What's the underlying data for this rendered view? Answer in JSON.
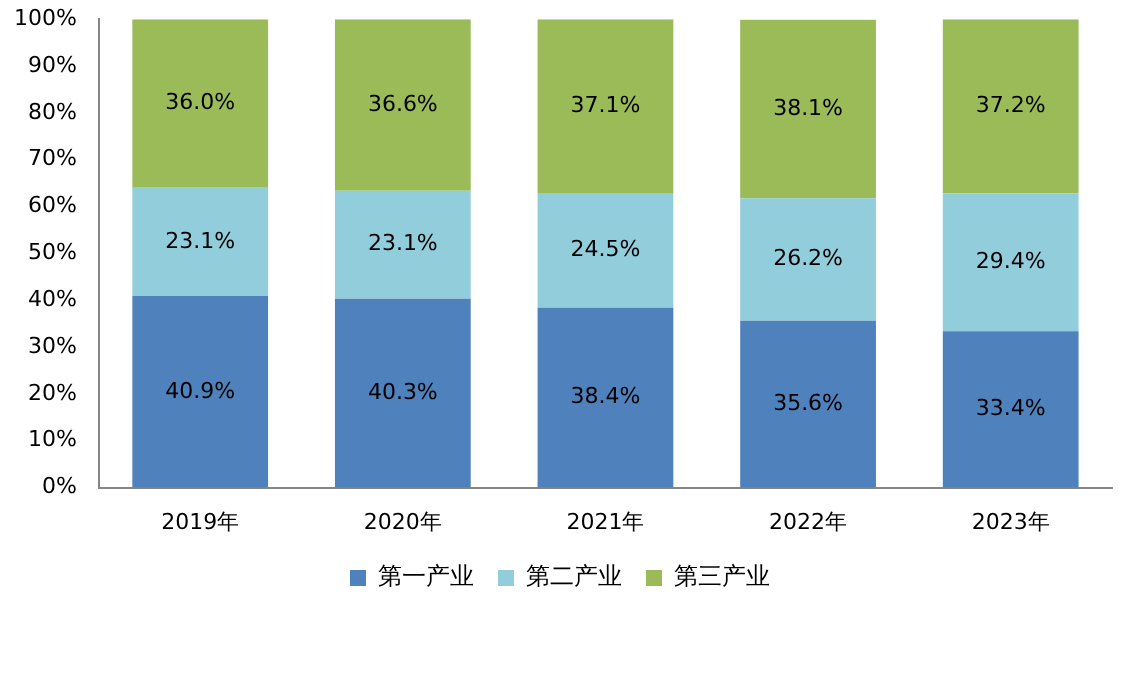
{
  "chart_data": {
    "type": "bar",
    "stacked": true,
    "categories": [
      "2019年",
      "2020年",
      "2021年",
      "2022年",
      "2023年"
    ],
    "series": [
      {
        "name": "第一产业",
        "color": "#4f81bd",
        "values": [
          40.9,
          40.3,
          38.4,
          35.6,
          33.4
        ],
        "value_labels": [
          "40.9%",
          "40.3%",
          "38.4%",
          "35.6%",
          "33.4%"
        ]
      },
      {
        "name": "第二产业",
        "color": "#92cddc",
        "values": [
          23.1,
          23.1,
          24.5,
          26.2,
          29.4
        ],
        "value_labels": [
          "23.1%",
          "23.1%",
          "24.5%",
          "26.2%",
          "29.4%"
        ]
      },
      {
        "name": "第三产业",
        "color": "#9bbb59",
        "values": [
          36.0,
          36.6,
          37.1,
          38.1,
          37.2
        ],
        "value_labels": [
          "36.0%",
          "36.6%",
          "37.1%",
          "38.1%",
          "37.2%"
        ]
      }
    ],
    "ylim": [
      0,
      100
    ],
    "yticks": [
      {
        "value": 0,
        "label": "0%"
      },
      {
        "value": 10,
        "label": "10%"
      },
      {
        "value": 20,
        "label": "20%"
      },
      {
        "value": 30,
        "label": "30%"
      },
      {
        "value": 40,
        "label": "40%"
      },
      {
        "value": 50,
        "label": "50%"
      },
      {
        "value": 60,
        "label": "60%"
      },
      {
        "value": 70,
        "label": "70%"
      },
      {
        "value": 80,
        "label": "80%"
      },
      {
        "value": 90,
        "label": "90%"
      },
      {
        "value": 100,
        "label": "100%"
      }
    ],
    "grid": false,
    "legend": "bottom"
  }
}
